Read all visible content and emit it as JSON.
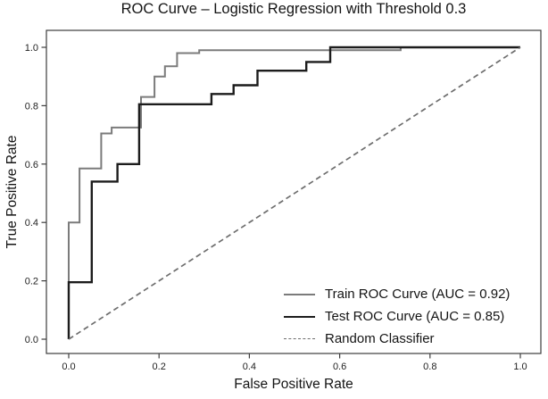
{
  "chart_data": {
    "type": "line",
    "title": "ROC Curve – Logistic Regression with Threshold 0.3",
    "xlabel": "False Positive Rate",
    "ylabel": "True Positive Rate",
    "x_tick_labels": [
      "0.0",
      "0.2",
      "0.4",
      "0.6",
      "0.8",
      "1.0"
    ],
    "y_tick_labels": [
      "0.0",
      "0.2",
      "0.4",
      "0.6",
      "0.8",
      "1.0"
    ],
    "xlim": [
      -0.05,
      1.05
    ],
    "ylim": [
      -0.05,
      1.05
    ],
    "grid": false,
    "legend_position": "lower right",
    "series": [
      {
        "id": "train-roc-curve",
        "name": "Train ROC Curve",
        "auc": 0.92,
        "label": "Train ROC Curve (AUC = 0.92)",
        "color": "#7b7b7b",
        "line_style": "solid",
        "line_width": 2,
        "points": [
          [
            0,
            0
          ],
          [
            0,
            0.4
          ],
          [
            0.024,
            0.4
          ],
          [
            0.024,
            0.585
          ],
          [
            0.072,
            0.585
          ],
          [
            0.072,
            0.705
          ],
          [
            0.095,
            0.705
          ],
          [
            0.095,
            0.725
          ],
          [
            0.16,
            0.725
          ],
          [
            0.16,
            0.83
          ],
          [
            0.19,
            0.83
          ],
          [
            0.19,
            0.9
          ],
          [
            0.213,
            0.9
          ],
          [
            0.213,
            0.935
          ],
          [
            0.24,
            0.935
          ],
          [
            0.24,
            0.98
          ],
          [
            0.289,
            0.98
          ],
          [
            0.289,
            0.99
          ],
          [
            0.735,
            0.99
          ],
          [
            0.735,
            1.0
          ],
          [
            1.0,
            1.0
          ]
        ]
      },
      {
        "id": "test-roc-curve",
        "name": "Test ROC Curve",
        "auc": 0.85,
        "label": "Test ROC Curve (AUC = 0.85)",
        "color": "#1c1c1c",
        "line_style": "solid",
        "line_width": 2.4,
        "points": [
          [
            0,
            0
          ],
          [
            0,
            0.195
          ],
          [
            0.051,
            0.195
          ],
          [
            0.051,
            0.54
          ],
          [
            0.108,
            0.54
          ],
          [
            0.108,
            0.6
          ],
          [
            0.156,
            0.6
          ],
          [
            0.156,
            0.805
          ],
          [
            0.316,
            0.805
          ],
          [
            0.316,
            0.84
          ],
          [
            0.365,
            0.84
          ],
          [
            0.365,
            0.87
          ],
          [
            0.418,
            0.87
          ],
          [
            0.418,
            0.92
          ],
          [
            0.526,
            0.92
          ],
          [
            0.526,
            0.95
          ],
          [
            0.579,
            0.95
          ],
          [
            0.579,
            1.0
          ],
          [
            1.0,
            1.0
          ]
        ]
      },
      {
        "id": "random-classifier",
        "name": "Random Classifier",
        "label": "Random Classifier",
        "color": "#6e6e6e",
        "line_style": "dashed",
        "line_width": 1.7,
        "points": [
          [
            0,
            0
          ],
          [
            1.0,
            1.0
          ]
        ]
      }
    ]
  }
}
